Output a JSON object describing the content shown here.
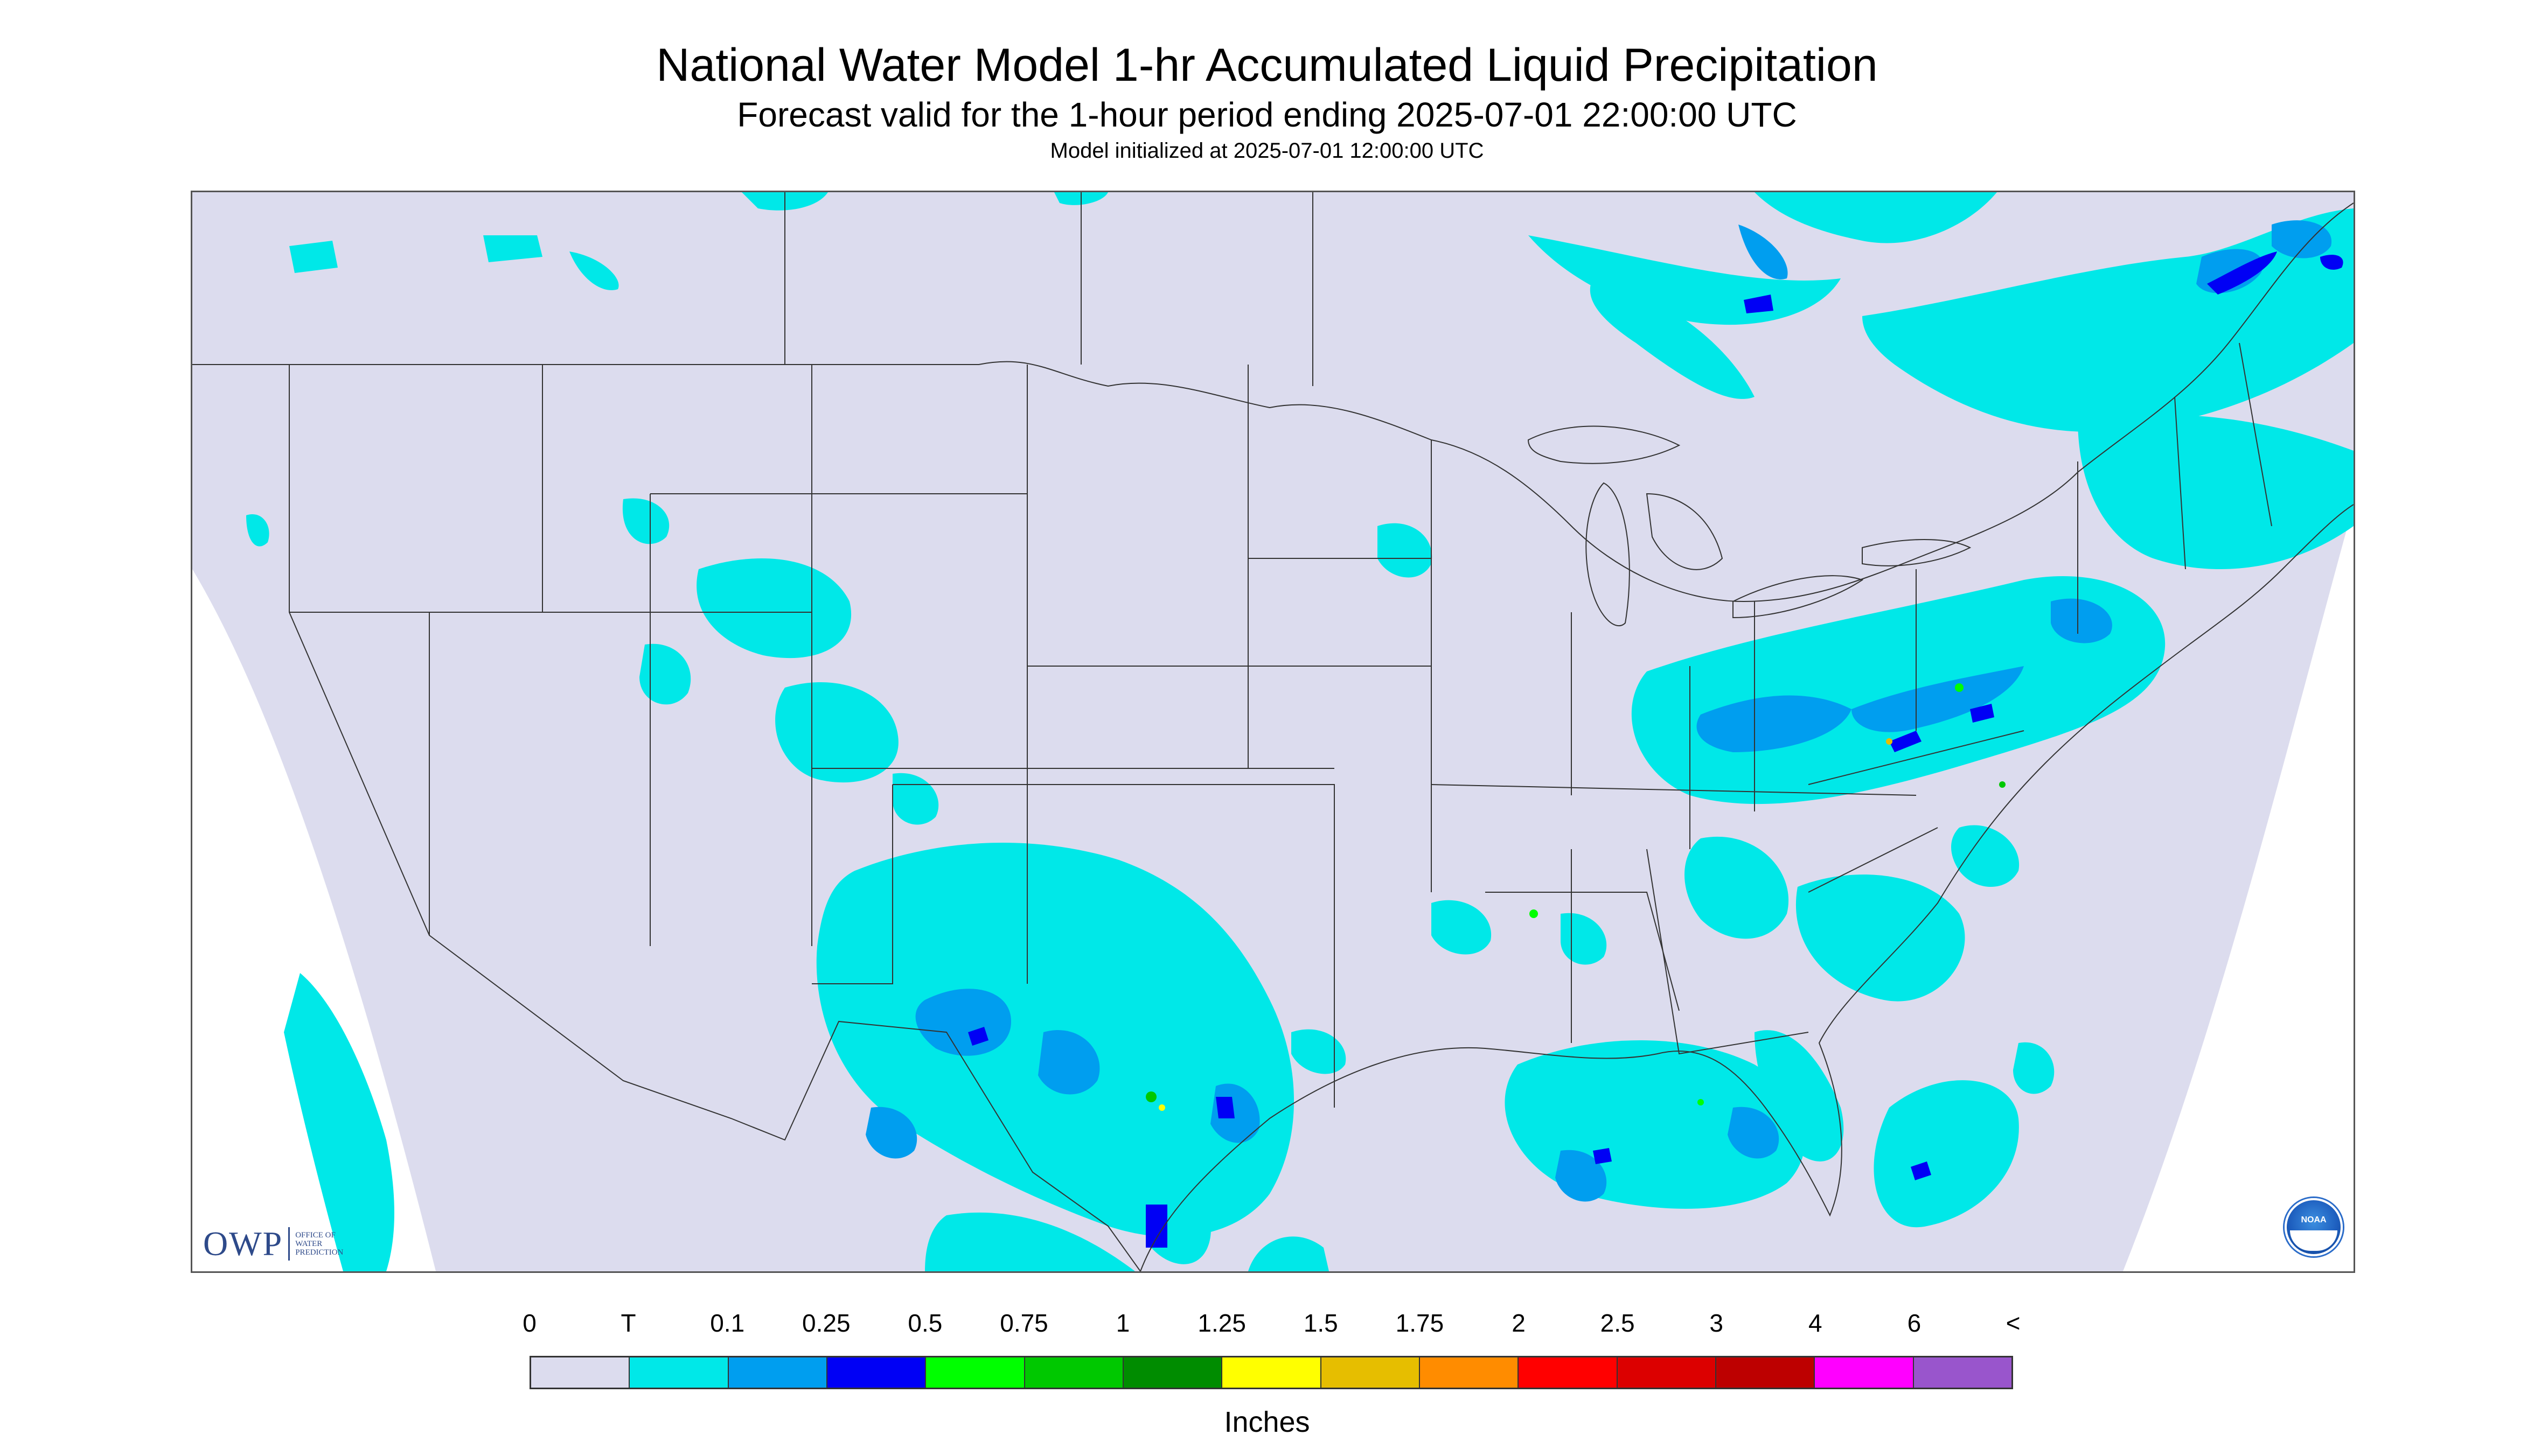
{
  "header": {
    "title": "National Water Model 1-hr Accumulated Liquid Precipitation",
    "subtitle": "Forecast valid for the 1-hour period ending 2025-07-01 22:00:00 UTC",
    "init_time": "Model initialized at 2025-07-01 12:00:00 UTC"
  },
  "logos": {
    "owp_mark": "OWP",
    "owp_text": "OFFICE OF WATER PREDICTION",
    "noaa_text": "NOAA"
  },
  "legend": {
    "labels": [
      "0",
      "T",
      "0.1",
      "0.25",
      "0.5",
      "0.75",
      "1",
      "1.25",
      "1.5",
      "1.75",
      "2",
      "2.5",
      "3",
      "4",
      "6",
      "<"
    ],
    "colors": [
      "#dcdcee",
      "#00e8e8",
      "#009eef",
      "#0000f5",
      "#00ff00",
      "#00c800",
      "#008c00",
      "#ffff00",
      "#e6be00",
      "#ff8c00",
      "#ff0000",
      "#dc0000",
      "#bd0000",
      "#ff00ff",
      "#9955cc"
    ],
    "units": "Inches"
  },
  "colors": {
    "no_precip": "#dcdcee",
    "trace": "#00e8e8",
    "light": "#009eef",
    "moderate": "#0000f5",
    "outside_domain": "#ffffff"
  }
}
